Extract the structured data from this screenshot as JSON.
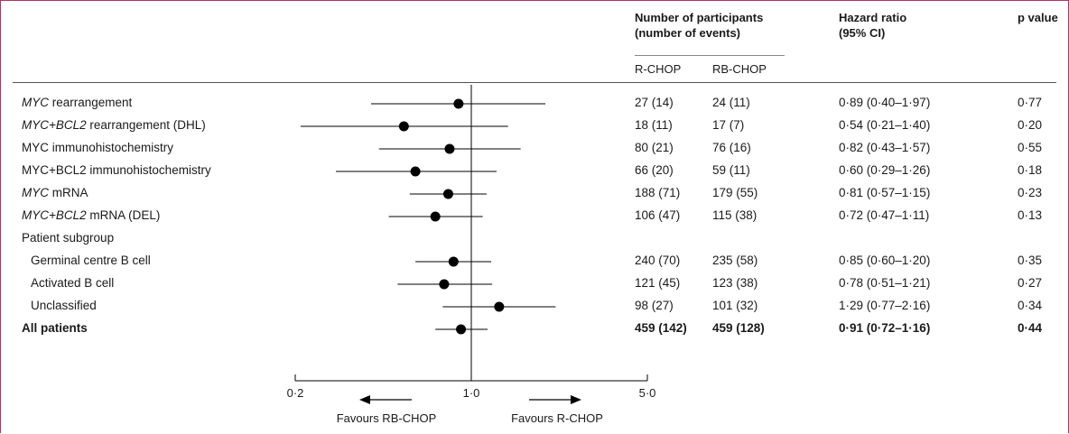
{
  "header": {
    "participants_line1": "Number of participants",
    "participants_line2": "(number of events)",
    "hr_line1": "Hazard ratio",
    "hr_line2": "(95% CI)",
    "pvalue": "p value",
    "arm1": "R-CHOP",
    "arm2": "RB-CHOP"
  },
  "rows": [
    {
      "label": [
        {
          "t": "MYC",
          "i": true
        },
        {
          "t": " rearrangement",
          "i": false
        }
      ],
      "rchop": "27 (14)",
      "rbchop": "24 (11)",
      "hr_text": "0·89 (0·40–1·97)",
      "p": "0·77",
      "hr": 0.89,
      "lo": 0.4,
      "hi": 1.97,
      "bold": false,
      "indent": false
    },
    {
      "label": [
        {
          "t": "MYC+BCL2",
          "i": true
        },
        {
          "t": " rearrangement (DHL)",
          "i": false
        }
      ],
      "rchop": "18 (11)",
      "rbchop": "17 (7)",
      "hr_text": "0·54 (0·21–1·40)",
      "p": "0·20",
      "hr": 0.54,
      "lo": 0.21,
      "hi": 1.4,
      "bold": false,
      "indent": false
    },
    {
      "label": [
        {
          "t": "MYC immunohistochemistry",
          "i": false
        }
      ],
      "rchop": "80 (21)",
      "rbchop": "76 (16)",
      "hr_text": "0·82 (0·43–1·57)",
      "p": "0·55",
      "hr": 0.82,
      "lo": 0.43,
      "hi": 1.57,
      "bold": false,
      "indent": false
    },
    {
      "label": [
        {
          "t": "MYC+BCL2 immunohistochemistry",
          "i": false
        }
      ],
      "rchop": "66 (20)",
      "rbchop": "59 (11)",
      "hr_text": "0·60 (0·29–1·26)",
      "p": "0·18",
      "hr": 0.6,
      "lo": 0.29,
      "hi": 1.26,
      "bold": false,
      "indent": false
    },
    {
      "label": [
        {
          "t": "MYC",
          "i": true
        },
        {
          "t": " mRNA",
          "i": false
        }
      ],
      "rchop": "188 (71)",
      "rbchop": "179 (55)",
      "hr_text": "0·81 (0·57–1·15)",
      "p": "0·23",
      "hr": 0.81,
      "lo": 0.57,
      "hi": 1.15,
      "bold": false,
      "indent": false
    },
    {
      "label": [
        {
          "t": "MYC+BCL2",
          "i": true
        },
        {
          "t": " mRNA (DEL)",
          "i": false
        }
      ],
      "rchop": "106 (47)",
      "rbchop": "115 (38)",
      "hr_text": "0·72 (0·47–1·11)",
      "p": "0·13",
      "hr": 0.72,
      "lo": 0.47,
      "hi": 1.11,
      "bold": false,
      "indent": false
    },
    {
      "label": [
        {
          "t": "Patient subgroup",
          "i": false
        }
      ],
      "rchop": "",
      "rbchop": "",
      "hr_text": "",
      "p": "",
      "hr": null,
      "lo": null,
      "hi": null,
      "bold": false,
      "indent": false
    },
    {
      "label": [
        {
          "t": "Germinal centre B cell",
          "i": false
        }
      ],
      "rchop": "240 (70)",
      "rbchop": "235 (58)",
      "hr_text": "0·85 (0·60–1·20)",
      "p": "0·35",
      "hr": 0.85,
      "lo": 0.6,
      "hi": 1.2,
      "bold": false,
      "indent": true
    },
    {
      "label": [
        {
          "t": "Activated B cell",
          "i": false
        }
      ],
      "rchop": "121 (45)",
      "rbchop": "123 (38)",
      "hr_text": "0·78 (0·51–1·21)",
      "p": "0·27",
      "hr": 0.78,
      "lo": 0.51,
      "hi": 1.21,
      "bold": false,
      "indent": true
    },
    {
      "label": [
        {
          "t": "Unclassified",
          "i": false
        }
      ],
      "rchop": "98 (27)",
      "rbchop": "101 (32)",
      "hr_text": "1·29 (0·77–2·16)",
      "p": "0·34",
      "hr": 1.29,
      "lo": 0.77,
      "hi": 2.16,
      "bold": false,
      "indent": true
    },
    {
      "label": [
        {
          "t": "All patients",
          "i": false
        }
      ],
      "rchop": "459 (142)",
      "rbchop": "459 (128)",
      "hr_text": "0·91 (0·72–1·16)",
      "p": "0·44",
      "hr": 0.91,
      "lo": 0.72,
      "hi": 1.16,
      "bold": true,
      "indent": false
    }
  ],
  "axis": {
    "ticks": [
      {
        "v": 0.2,
        "label": "0·2"
      },
      {
        "v": 1.0,
        "label": "1·0"
      },
      {
        "v": 5.0,
        "label": "5·0"
      }
    ],
    "favours_left": "Favours RB-CHOP",
    "favours_right": "Favours R-CHOP"
  },
  "chart_data": {
    "type": "forest",
    "xscale": "log",
    "xlim": [
      0.2,
      5.0
    ],
    "reference_line": 1.0,
    "categories": [
      "MYC rearrangement",
      "MYC+BCL2 rearrangement (DHL)",
      "MYC immunohistochemistry",
      "MYC+BCL2 immunohistochemistry",
      "MYC mRNA",
      "MYC+BCL2 mRNA (DEL)",
      "Germinal centre B cell",
      "Activated B cell",
      "Unclassified",
      "All patients"
    ],
    "hazard_ratio": [
      0.89,
      0.54,
      0.82,
      0.6,
      0.81,
      0.72,
      0.85,
      0.78,
      1.29,
      0.91
    ],
    "ci_lower": [
      0.4,
      0.21,
      0.43,
      0.29,
      0.57,
      0.47,
      0.6,
      0.51,
      0.77,
      0.72
    ],
    "ci_upper": [
      1.97,
      1.4,
      1.57,
      1.26,
      1.15,
      1.11,
      1.2,
      1.21,
      2.16,
      1.16
    ],
    "p_value": [
      0.77,
      0.2,
      0.55,
      0.18,
      0.23,
      0.13,
      0.35,
      0.27,
      0.34,
      0.44
    ]
  },
  "colors": {
    "frame": "#b0306a",
    "marks": "#000000"
  }
}
